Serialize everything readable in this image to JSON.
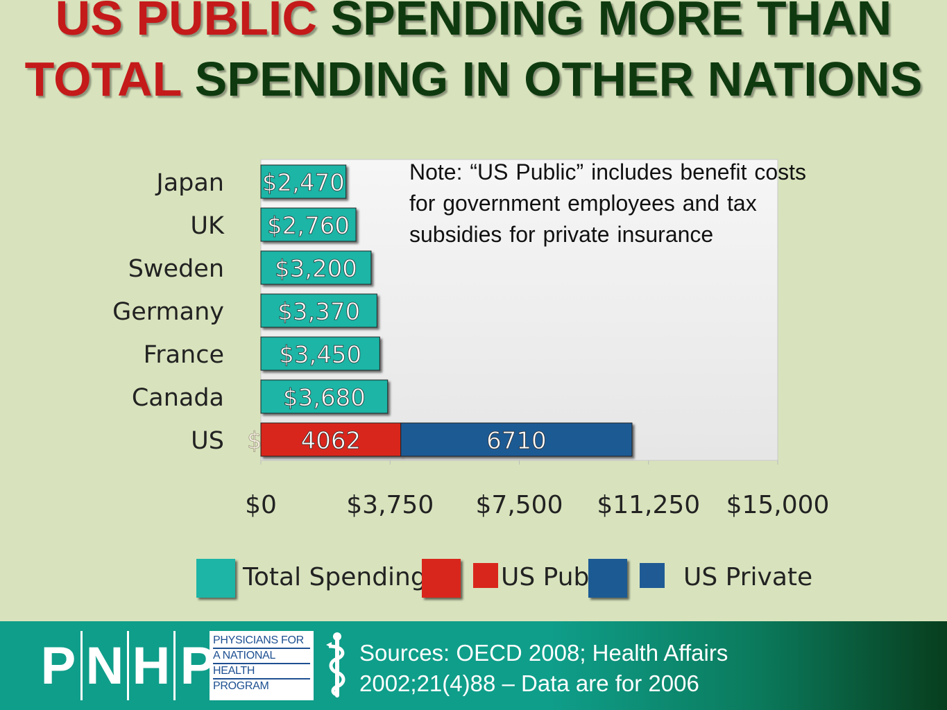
{
  "title": {
    "part1_red": "US PUBLIC",
    "part2": " SPENDING MORE THAN ",
    "part3_red": "TOTAL",
    "part4": " SPENDING IN OTHER NATIONS"
  },
  "note": "Note: “US Public” includes benefit costs for government employees and tax subsidies for private insurance",
  "colors": {
    "total_spending": "#1fb5a6",
    "us_public": "#d9261c",
    "us_private": "#1f5a94"
  },
  "chart_data": {
    "type": "bar",
    "orientation": "horizontal",
    "stacked": true,
    "categories": [
      "Japan",
      "UK",
      "Sweden",
      "Germany",
      "France",
      "Canada",
      "US"
    ],
    "series": [
      {
        "name": "Total Spending",
        "values": [
          2470,
          2760,
          3200,
          3370,
          3450,
          3680,
          null
        ],
        "labels": [
          "$2,470",
          "$2,760",
          "$3,200",
          "$3,370",
          "$3,450",
          "$3,680",
          "$0"
        ]
      },
      {
        "name": "US Public",
        "values": [
          null,
          null,
          null,
          null,
          null,
          null,
          4062
        ],
        "labels": [
          "",
          "",
          "",
          "",
          "",
          "",
          "4062"
        ]
      },
      {
        "name": "US Private",
        "values": [
          null,
          null,
          null,
          null,
          null,
          null,
          6710
        ],
        "labels": [
          "",
          "",
          "",
          "",
          "",
          "",
          "6710"
        ]
      }
    ],
    "xlim": [
      0,
      15000
    ],
    "xticks": [
      0,
      3750,
      7500,
      11250,
      15000
    ],
    "xtick_labels": [
      "$0",
      "$3,750",
      "$7,500",
      "$11,250",
      "$15,000"
    ],
    "legend_labels": [
      "Total Spending",
      "US Public",
      "US Private"
    ],
    "legend_position": "bottom",
    "grid": false
  },
  "footer": {
    "logo_letters": [
      "P",
      "N",
      "H",
      "P"
    ],
    "org_lines": [
      "PHYSICIANS FOR",
      "A NATIONAL",
      "HEALTH",
      "PROGRAM"
    ],
    "sources_line1": "Sources: OECD 2008; Health Affairs",
    "sources_line2": "2002;21(4)88 – Data are for 2006"
  }
}
